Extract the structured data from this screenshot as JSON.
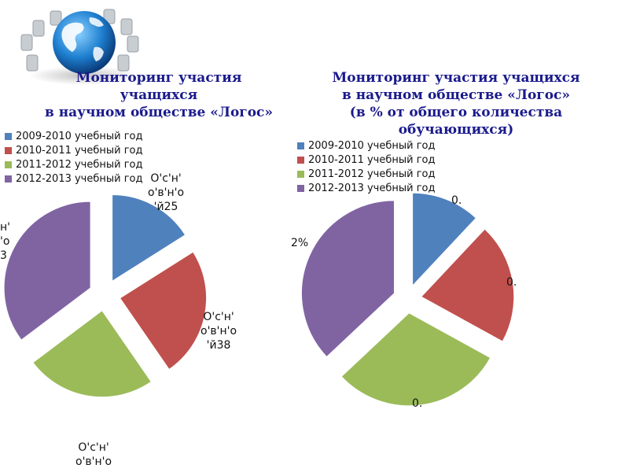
{
  "titles": {
    "left": [
      "Мониторинг участия",
      "учащихся",
      "в научном обществе «Логос»"
    ],
    "right": [
      "Мониторинг участия учащихся",
      "в научном обществе «Логос»",
      "(в % от общего количества",
      "обучающихся)"
    ]
  },
  "chart_data": [
    {
      "type": "pie",
      "exploded": true,
      "categories": [
        "2009-2010 учебный год",
        "2010-2011 учебный год",
        "2011-2012 учебный год",
        "2012-2013 учебный год"
      ],
      "values": [
        25,
        38,
        38,
        55
      ],
      "colors": [
        "#4f81bd",
        "#c0504d",
        "#9bbb59",
        "#8064a2"
      ],
      "legend_position": "top-left",
      "data_labels": [
        [
          "О'с'н'",
          "о'в'н'о",
          "'й25"
        ],
        [
          "О'с'н'",
          "о'в'н'о",
          "'й38"
        ],
        [
          "О'с'н'",
          "о'в'н'о"
        ],
        [
          "н'",
          "'о",
          "3"
        ]
      ]
    },
    {
      "type": "pie",
      "exploded": true,
      "categories": [
        "2009-2010 учебный год",
        "2010-2011 учебный год",
        "2011-2012 учебный год",
        "2012-2013 учебный год"
      ],
      "values": [
        12,
        21,
        30,
        37
      ],
      "colors": [
        "#4f81bd",
        "#c0504d",
        "#9bbb59",
        "#8064a2"
      ],
      "legend_position": "top-left",
      "data_labels": [
        "0.",
        "0.",
        "0.",
        "2%"
      ]
    }
  ]
}
